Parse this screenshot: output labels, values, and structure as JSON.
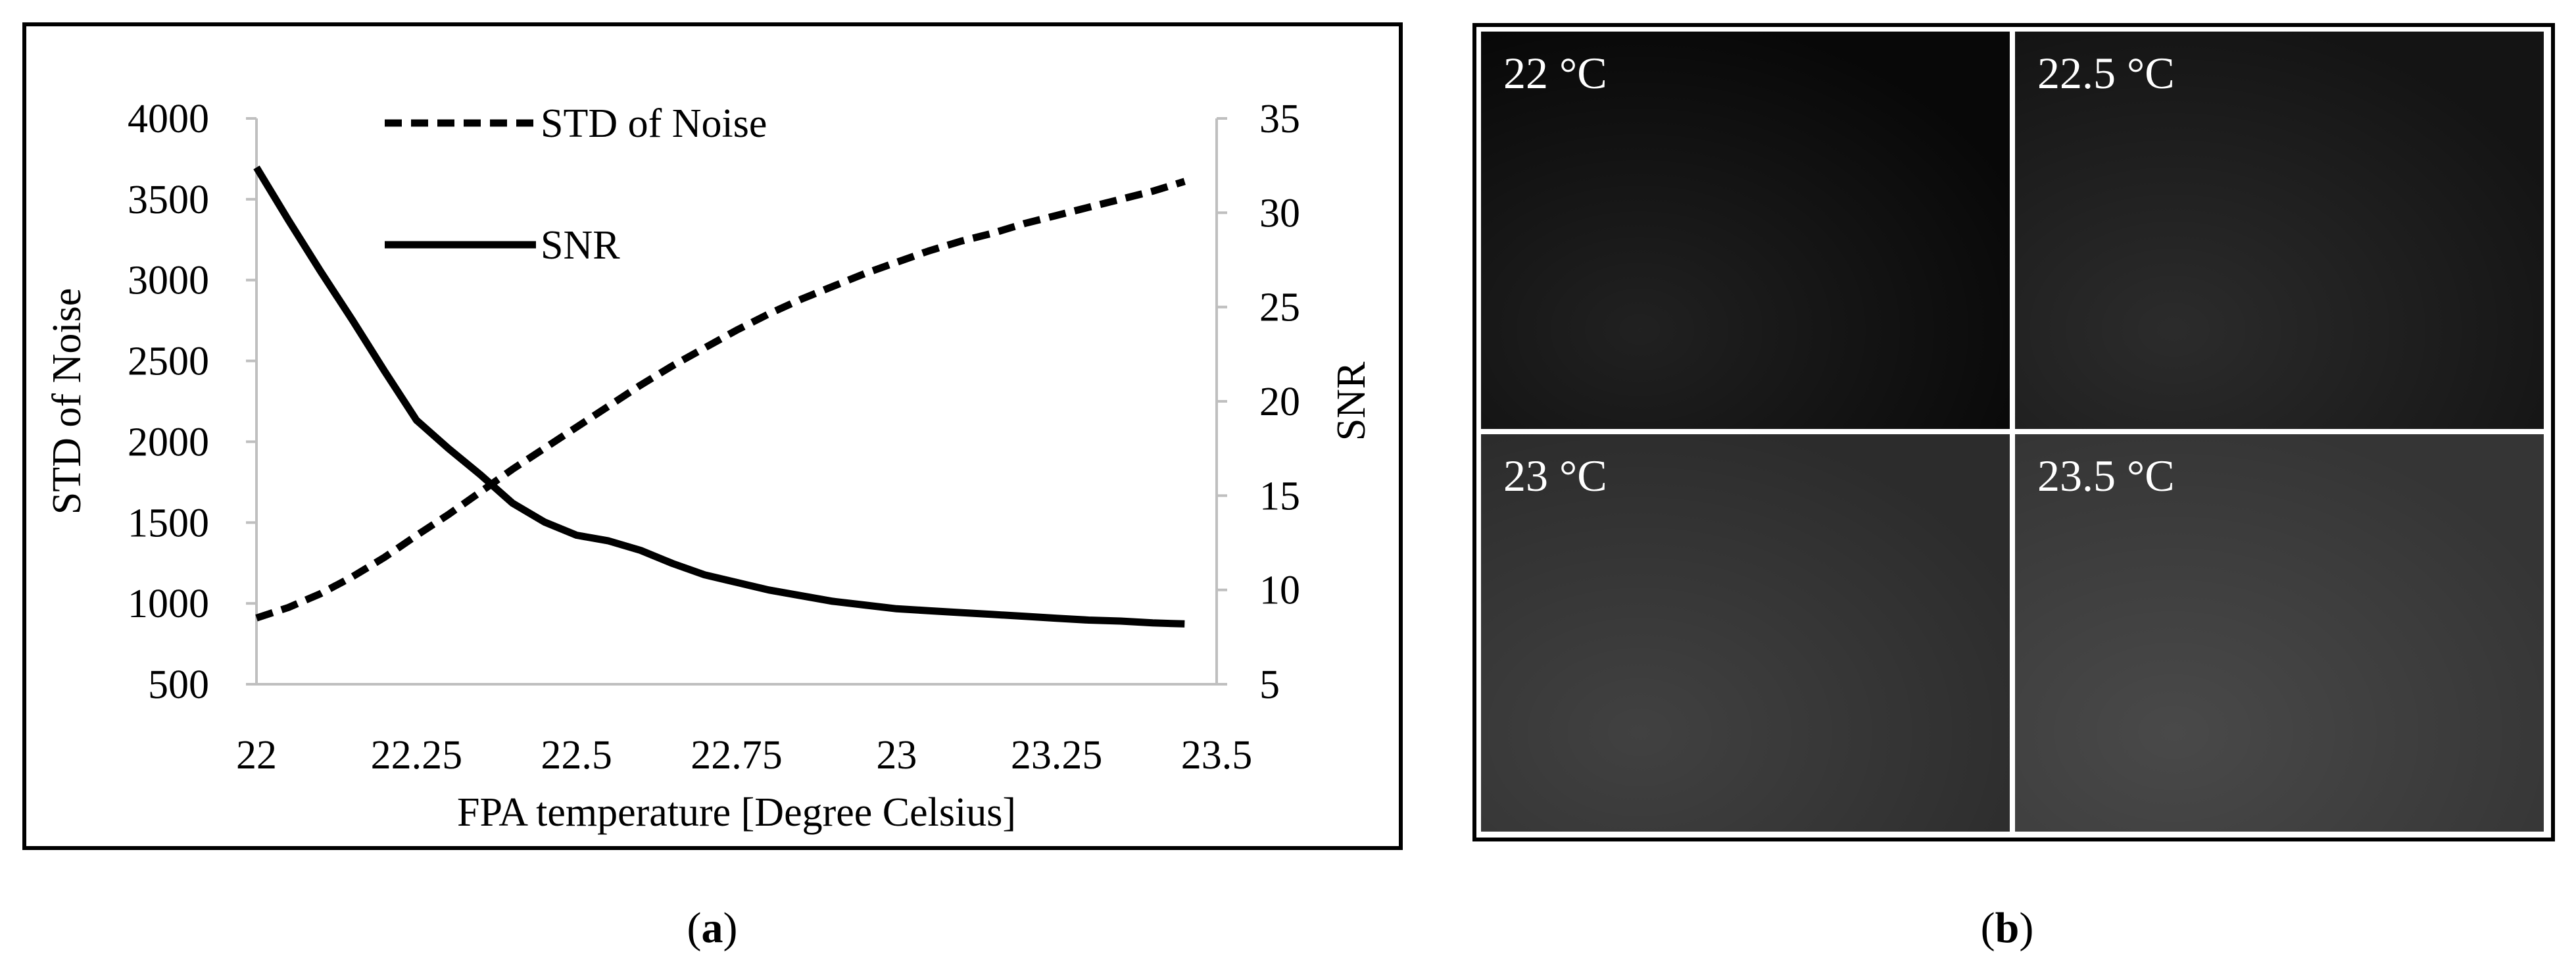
{
  "panels": {
    "a_caption_letter": "a",
    "b_caption_letter": "b"
  },
  "chart_data": {
    "type": "line",
    "xlabel": "FPA temperature [Degree Celsius]",
    "ylabel_left": "STD of Noise",
    "ylabel_right": "SNR",
    "xlim": [
      22,
      23.5
    ],
    "ylim_left": [
      500,
      4000
    ],
    "ylim_right": [
      5,
      35
    ],
    "x_ticks": [
      "22",
      "22.25",
      "22.5",
      "22.75",
      "23",
      "23.25",
      "23.5"
    ],
    "y_left_ticks": [
      "4000",
      "3500",
      "3000",
      "2500",
      "2000",
      "1500",
      "1000",
      "500"
    ],
    "y_right_ticks": [
      "35",
      "30",
      "25",
      "20",
      "15",
      "10",
      "5"
    ],
    "grid": false,
    "legend_position": "top-center",
    "series": [
      {
        "name": "STD of Noise",
        "axis": "left",
        "style": "dashed",
        "x": [
          22.0,
          22.05,
          22.1,
          22.15,
          22.2,
          22.25,
          22.3,
          22.35,
          22.4,
          22.45,
          22.5,
          22.55,
          22.6,
          22.65,
          22.7,
          22.75,
          22.8,
          22.85,
          22.9,
          22.95,
          23.0,
          23.05,
          23.1,
          23.15,
          23.2,
          23.25,
          23.3,
          23.35,
          23.4,
          23.45
        ],
        "values": [
          910,
          975,
          1060,
          1165,
          1285,
          1420,
          1550,
          1690,
          1830,
          1960,
          2090,
          2220,
          2350,
          2470,
          2580,
          2690,
          2790,
          2880,
          2960,
          3040,
          3110,
          3180,
          3240,
          3290,
          3350,
          3400,
          3450,
          3500,
          3550,
          3610
        ]
      },
      {
        "name": "SNR",
        "axis": "right",
        "style": "solid",
        "x": [
          22.0,
          22.05,
          22.1,
          22.15,
          22.2,
          22.25,
          22.3,
          22.35,
          22.4,
          22.45,
          22.5,
          22.55,
          22.6,
          22.65,
          22.7,
          22.75,
          22.8,
          22.85,
          22.9,
          22.95,
          23.0,
          23.05,
          23.1,
          23.15,
          23.2,
          23.25,
          23.3,
          23.35,
          23.4,
          23.45
        ],
        "values": [
          32.4,
          29.6,
          26.9,
          24.3,
          21.6,
          19.0,
          17.5,
          16.1,
          14.6,
          13.6,
          12.9,
          12.6,
          12.1,
          11.4,
          10.8,
          10.4,
          10.0,
          9.7,
          9.4,
          9.2,
          9.0,
          8.9,
          8.8,
          8.7,
          8.6,
          8.5,
          8.4,
          8.35,
          8.25,
          8.2
        ]
      }
    ]
  },
  "thermal_images": {
    "tiles": [
      {
        "label": "22 °C",
        "brightness": "#080808"
      },
      {
        "label": "22.5 °C",
        "brightness": "#141414"
      },
      {
        "label": "23 °C",
        "brightness": "#2c2c2c"
      },
      {
        "label": "23.5 °C",
        "brightness": "#353535"
      }
    ]
  }
}
